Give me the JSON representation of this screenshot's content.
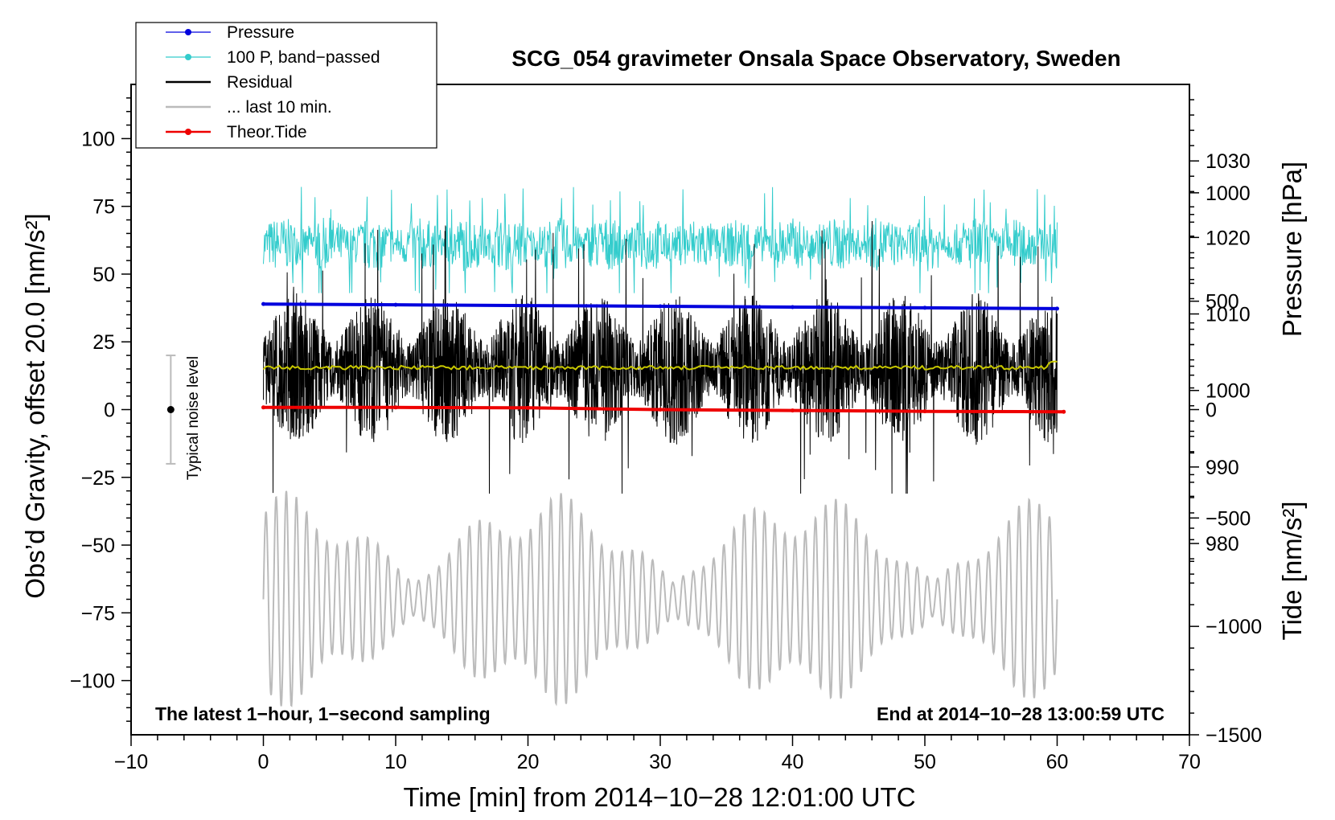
{
  "chart_data": {
    "type": "line",
    "title": "SCG_054 gravimeter Onsala Space Observatory, Sweden",
    "xlabel": "Time [min] from 2014−10−28 12:01:00 UTC",
    "ylabel_left": "Obs’d Gravity, offset 20.0 [nm/s²]",
    "ylabel_right_pressure": "Pressure [hPa]",
    "ylabel_right_tide": "Tide [nm/s²]",
    "xlim": [
      -10,
      70
    ],
    "ylim": [
      -120,
      120
    ],
    "pressure_ylim": [
      955,
      1040
    ],
    "tide_ylim": [
      -1500,
      1500
    ],
    "x_ticks": [
      -10,
      0,
      10,
      20,
      30,
      40,
      50,
      60,
      70
    ],
    "x_tick_labels": [
      "−10",
      "0",
      "10",
      "20",
      "30",
      "40",
      "50",
      "60",
      "70"
    ],
    "y_ticks": [
      100,
      75,
      50,
      25,
      0,
      -25,
      -50,
      -75,
      -100
    ],
    "y_tick_labels": [
      "100",
      "75",
      "50",
      "25",
      "0",
      "−25",
      "−50",
      "−75",
      "−100"
    ],
    "pressure_ticks": [
      1030,
      1020,
      1010,
      1000,
      990,
      980
    ],
    "pressure_tick_labels": [
      "1030",
      "1020",
      "1010",
      "1000",
      "990",
      "980"
    ],
    "tide_ticks": [
      1000,
      500,
      0,
      -500,
      -1000,
      -1500
    ],
    "tide_tick_labels": [
      "1000",
      "500",
      "0",
      "−500",
      "−1000",
      "−1500"
    ],
    "legend": [
      {
        "label": "Pressure",
        "color": "#0000dd",
        "marker": true
      },
      {
        "label": "100 P, band−passed",
        "color": "#33cccc",
        "marker": true
      },
      {
        "label": "Residual",
        "color": "#000000",
        "marker": false
      },
      {
        "label": "... last 10 min.",
        "color": "#bbbbbb",
        "marker": false
      },
      {
        "label": "Theor.Tide",
        "color": "#ee0000",
        "marker": true
      }
    ],
    "legend_position": "top-left",
    "annotations": {
      "bottom_left": "The latest 1−hour, 1−second sampling",
      "bottom_right": "End at 2014−10−28 13:00:59 UTC",
      "noise_label": "Typical noise level"
    },
    "noise_bar": {
      "x": -7,
      "center": 0,
      "low": -20,
      "high": 20
    },
    "series": [
      {
        "name": "Pressure",
        "axis": "pressure",
        "color": "#0000dd",
        "x": [
          0,
          10,
          20,
          30,
          40,
          50,
          60
        ],
        "values": [
          1011.3,
          1011.2,
          1011.1,
          1011.0,
          1010.9,
          1010.8,
          1010.7
        ]
      },
      {
        "name": "100 P, band-passed",
        "axis": "gravity",
        "color": "#33cccc",
        "x_range": [
          0,
          60
        ],
        "center": 61,
        "amplitude_range": [
          -18,
          24
        ]
      },
      {
        "name": "Residual",
        "axis": "gravity",
        "color": "#000000",
        "x_range": [
          0,
          60
        ],
        "center": 15,
        "amplitude_range": [
          -46,
          60
        ]
      },
      {
        "name": "Residual (smoothed)",
        "axis": "gravity",
        "color": "#c8c800",
        "x": [
          0,
          60
        ],
        "values": [
          15.5,
          15.5
        ]
      },
      {
        "name": "... last 10 min.",
        "axis": "gravity",
        "color": "#bbbbbb",
        "x_range": [
          0,
          60
        ],
        "center": -70,
        "amplitude_range": [
          -48,
          45
        ]
      },
      {
        "name": "Theor.Tide",
        "axis": "tide",
        "color": "#ee0000",
        "x": [
          0,
          10,
          20,
          30,
          40,
          50,
          60.5
        ],
        "values": [
          10,
          10,
          8,
          0,
          -4,
          -8,
          -10
        ]
      }
    ]
  }
}
